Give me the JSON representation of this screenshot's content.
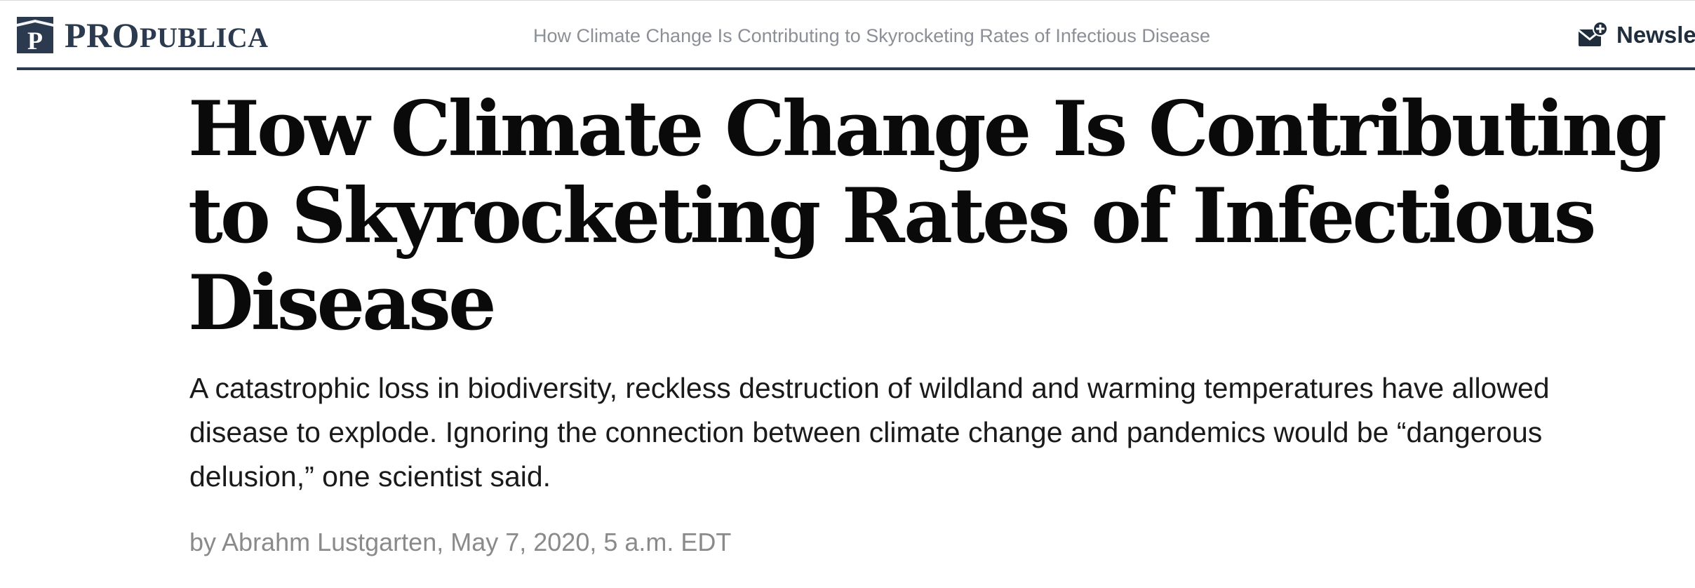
{
  "header": {
    "logo": {
      "text_pro": "PRO",
      "text_publica": "PUBLICA",
      "icon": "propublica-logo-mark"
    },
    "article_title": "How Climate Change Is Contributing to Skyrocketing Rates of Infectious Disease",
    "newsletter": {
      "icon": "envelope-plus-icon",
      "label": "Newsle"
    }
  },
  "article": {
    "headline": "How Climate Change Is Contributing to Skyrocketing Rates of Infectious Disease",
    "dek": "A catastrophic loss in biodiversity, reckless destruction of wildland and warming temperatures have allowed disease to explode. Ignoring the connection between climate change and pandemics would be “dangerous delusion,” one scientist said.",
    "byline": "by Abrahm Lustgarten, May 7, 2020, 5 a.m. EDT"
  },
  "colors": {
    "brand_navy": "#2b3a4e",
    "header_title_gray": "#8b8f96",
    "byline_gray": "#8a8a8a",
    "headline_black": "#0a0a0a"
  }
}
